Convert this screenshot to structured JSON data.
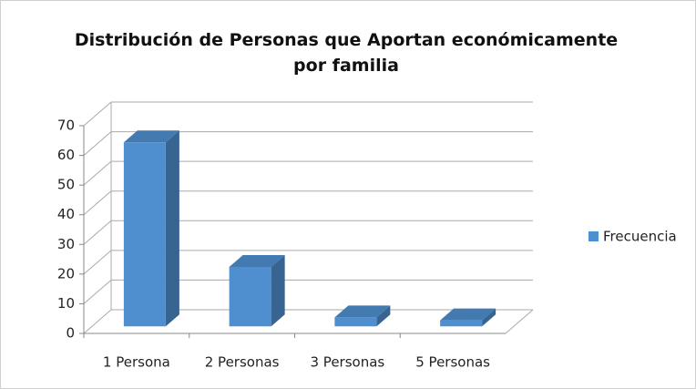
{
  "chart_data": {
    "type": "bar3d",
    "title": "Distribución de Personas que Aportan económicamente por familia",
    "categories": [
      "1 Persona",
      "2 Personas",
      "3 Personas",
      "5 Personas"
    ],
    "series": [
      {
        "name": "Frecuencia",
        "color": "#4f8fcf",
        "values": [
          62,
          20,
          3,
          2
        ]
      }
    ],
    "ylim": [
      0,
      70
    ],
    "yticks": [
      0,
      10,
      20,
      30,
      40,
      50,
      60,
      70
    ],
    "grid": true,
    "legend": "right"
  }
}
